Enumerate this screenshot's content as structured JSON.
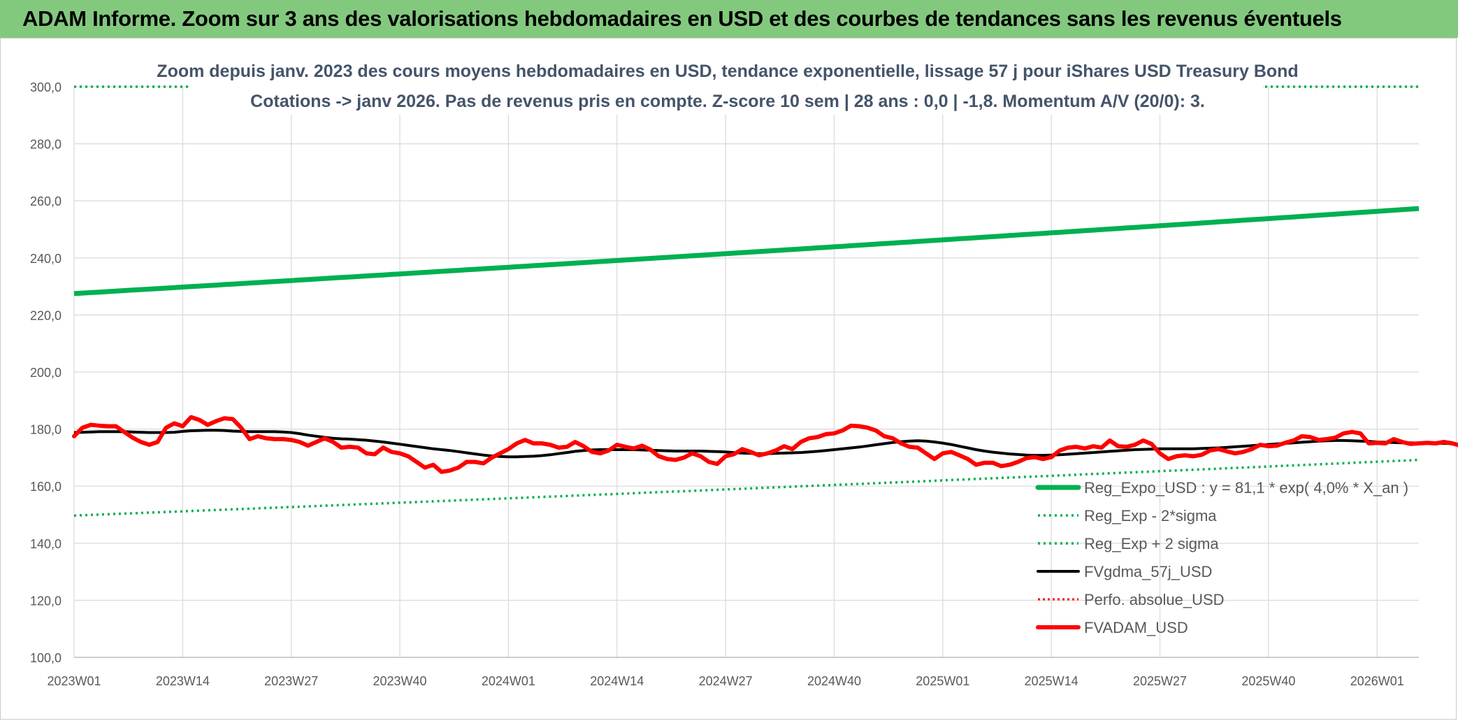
{
  "header": {
    "title": "ADAM Informe. Zoom sur 3 ans des valorisations hebdomadaires en USD et des courbes de tendances sans les revenus éventuels"
  },
  "chart_data": {
    "type": "line",
    "title": "Zoom depuis janv. 2023 des cours moyens hebdomadaires en USD, tendance exponentielle, lissage 57 j pour iShares USD Treasury Bond",
    "subtitle": "Cotations -> janv 2026. Pas de revenus pris en compte. Z-score 10 sem | 28 ans : 0,0 | -1,8. Momentum A/V (20/0): 3.",
    "xlabel": "",
    "ylabel": "",
    "ylim": [
      100,
      300
    ],
    "y_ticks": [
      "100,0",
      "120,0",
      "140,0",
      "160,0",
      "180,0",
      "200,0",
      "220,0",
      "240,0",
      "260,0",
      "280,0",
      "300,0"
    ],
    "x_ticks": [
      "2023W01",
      "2023W14",
      "2023W27",
      "2023W40",
      "2024W01",
      "2024W14",
      "2024W27",
      "2024W40",
      "2025W01",
      "2025W14",
      "2025W27",
      "2025W40",
      "2026W01"
    ],
    "weeks_total": 162,
    "grid": true,
    "legend_position": "bottom-right",
    "series": [
      {
        "name": "Reg_Expo_USD : y = 81,1 * exp( 4,0% *  X_an )",
        "color": "#00b050",
        "style": "thick",
        "start": 227.5,
        "end": 257.3
      },
      {
        "name": "Reg_Exp - 2*sigma",
        "color": "#00b050",
        "style": "dotted",
        "start": 149.7,
        "end": 169.2
      },
      {
        "name": "Reg_Exp + 2 sigma",
        "color": "#00b050",
        "style": "dotted",
        "start": 300.0,
        "end": 300.0
      },
      {
        "name": "FVgdma_57j_USD",
        "color": "#000000",
        "style": "solid",
        "values": [
          178.8,
          178.9,
          179.0,
          179.1,
          179.1,
          179.1,
          179.1,
          179.0,
          178.9,
          178.8,
          178.8,
          178.8,
          178.9,
          179.2,
          179.4,
          179.5,
          179.6,
          179.6,
          179.5,
          179.3,
          179.2,
          179.1,
          179.1,
          179.1,
          179.1,
          179.0,
          178.8,
          178.4,
          177.9,
          177.5,
          177.1,
          176.8,
          176.6,
          176.5,
          176.3,
          176.1,
          175.8,
          175.5,
          175.1,
          174.7,
          174.3,
          173.9,
          173.5,
          173.1,
          172.8,
          172.5,
          172.1,
          171.7,
          171.3,
          170.9,
          170.6,
          170.4,
          170.3,
          170.3,
          170.4,
          170.5,
          170.7,
          171.0,
          171.4,
          171.8,
          172.2,
          172.5,
          172.7,
          172.8,
          172.8,
          172.8,
          172.8,
          172.8,
          172.7,
          172.6,
          172.5,
          172.4,
          172.3,
          172.3,
          172.3,
          172.3,
          172.2,
          172.1,
          172.0,
          171.8,
          171.6,
          171.5,
          171.4,
          171.4,
          171.5,
          171.6,
          171.7,
          171.8,
          172.0,
          172.2,
          172.5,
          172.8,
          173.1,
          173.4,
          173.7,
          174.1,
          174.5,
          174.9,
          175.3,
          175.6,
          175.8,
          175.9,
          175.8,
          175.5,
          175.1,
          174.6,
          174.0,
          173.4,
          172.8,
          172.3,
          171.9,
          171.6,
          171.3,
          171.1,
          170.9,
          170.8,
          170.8,
          170.9,
          171.0,
          171.2,
          171.4,
          171.6,
          171.8,
          172.0,
          172.2,
          172.4,
          172.6,
          172.8,
          172.9,
          173.0,
          173.1,
          173.1,
          173.1,
          173.1,
          173.1,
          173.2,
          173.3,
          173.4,
          173.6,
          173.8,
          174.0,
          174.2,
          174.4,
          174.6,
          174.8,
          175.0,
          175.2,
          175.4,
          175.6,
          175.8,
          175.9,
          176.0,
          176.0,
          175.9,
          175.8,
          175.7,
          175.5,
          175.4,
          175.3,
          175.2,
          175.2,
          175.1,
          175.1,
          175.1,
          175.0,
          174.9
        ]
      },
      {
        "name": "Perfo. absolue_USD",
        "color": "#ff0000",
        "style": "dotted"
      },
      {
        "name": "FVADAM_USD",
        "color": "#ff0000",
        "style": "thick",
        "values": [
          177.5,
          180.5,
          181.5,
          181.2,
          181.0,
          181.0,
          179.0,
          177.0,
          175.5,
          174.5,
          175.5,
          180.5,
          182.0,
          181.0,
          184.2,
          183.2,
          181.5,
          182.8,
          183.8,
          183.5,
          180.5,
          176.5,
          177.5,
          176.8,
          176.5,
          176.5,
          176.2,
          175.5,
          174.2,
          175.5,
          176.8,
          175.5,
          173.5,
          173.8,
          173.5,
          171.5,
          171.2,
          173.5,
          172.0,
          171.5,
          170.5,
          168.5,
          166.5,
          167.5,
          165.0,
          165.5,
          166.5,
          168.5,
          168.5,
          168.0,
          170.0,
          171.5,
          173.0,
          175.0,
          176.2,
          175.0,
          175.0,
          174.5,
          173.5,
          173.8,
          175.5,
          174.0,
          172.0,
          171.5,
          172.5,
          174.5,
          173.8,
          173.2,
          174.2,
          172.8,
          170.5,
          169.5,
          169.2,
          170.0,
          171.5,
          170.5,
          168.5,
          167.8,
          170.5,
          171.2,
          173.0,
          172.0,
          170.8,
          171.5,
          172.5,
          174.0,
          173.0,
          175.5,
          176.8,
          177.2,
          178.2,
          178.5,
          179.5,
          181.2,
          181.0,
          180.5,
          179.5,
          177.5,
          176.8,
          175.0,
          173.8,
          173.5,
          171.5,
          169.5,
          171.5,
          172.0,
          170.8,
          169.5,
          167.5,
          168.2,
          168.2,
          167.0,
          167.5,
          168.5,
          169.8,
          170.2,
          169.5,
          170.2,
          172.5,
          173.5,
          173.8,
          173.2,
          174.0,
          173.5,
          176.0,
          174.0,
          173.8,
          174.5,
          176.0,
          174.8,
          171.5,
          169.5,
          170.5,
          170.8,
          170.5,
          171.0,
          172.5,
          173.0,
          172.2,
          171.5,
          172.0,
          173.0,
          174.5,
          174.0,
          174.2,
          175.2,
          176.0,
          177.5,
          177.2,
          176.2,
          176.5,
          177.0,
          178.5,
          179.0,
          178.5,
          175.0,
          175.2,
          175.0,
          176.5,
          175.5,
          174.8,
          175.0,
          175.2,
          175.0,
          175.5,
          175.0,
          174.2,
          174.5
        ]
      }
    ]
  }
}
